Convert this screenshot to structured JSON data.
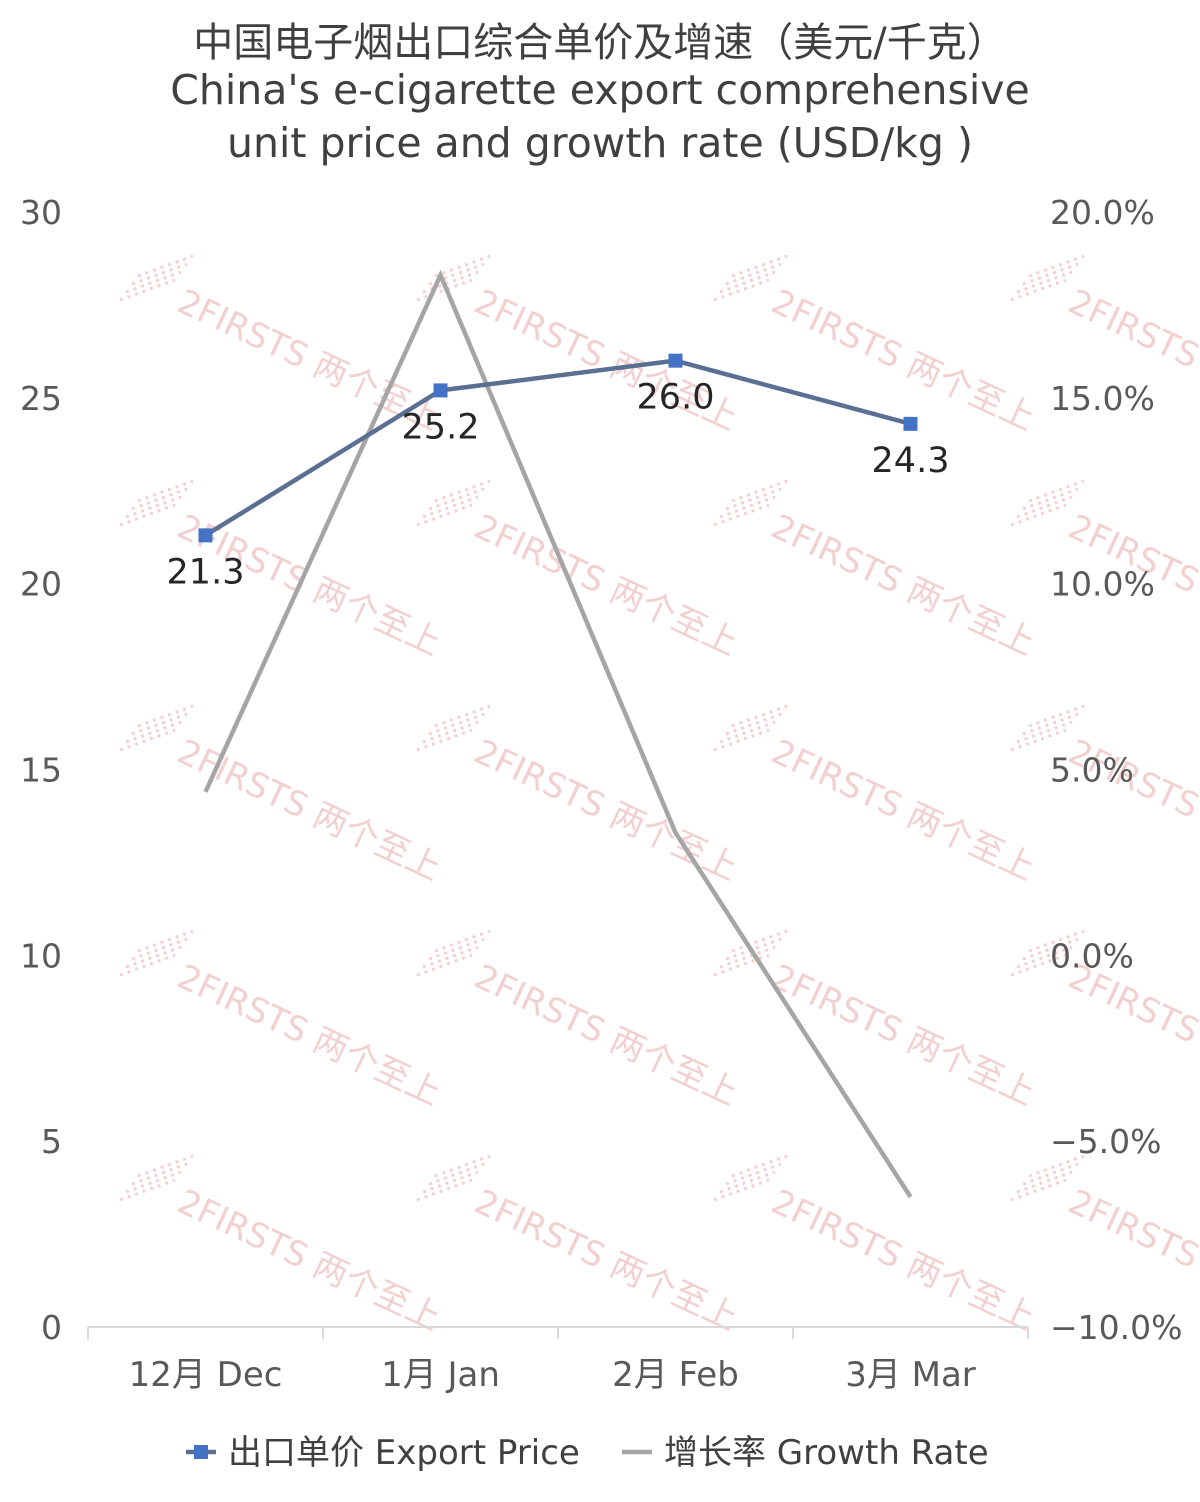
{
  "chart_data": {
    "type": "line",
    "title_cn": "中国电子烟出口综合单价及增速（美元/千克）",
    "title_en_line1": "China's e-cigarette export comprehensive",
    "title_en_line2": "unit price and growth rate (USD/kg )",
    "categories": [
      "12月 Dec",
      "1月 Jan",
      "2月 Feb",
      "3月 Mar"
    ],
    "y_left": {
      "min": 0,
      "max": 30,
      "step": 5,
      "ticks": [
        "0",
        "5",
        "10",
        "15",
        "20",
        "25",
        "30"
      ]
    },
    "y_right": {
      "min": -10,
      "max": 20,
      "step": 5,
      "ticks": [
        "-10.0%",
        "-5.0%",
        "0.0%",
        "5.0%",
        "10.0%",
        "15.0%",
        "20.0%"
      ]
    },
    "series": [
      {
        "name": "出口单价 Export Price",
        "axis": "left",
        "color": "#5a6f91",
        "marker_color": "#4472c4",
        "values": [
          21.3,
          25.2,
          26.0,
          24.3
        ],
        "labels": [
          "21.3",
          "25.2",
          "26.0",
          "24.3"
        ]
      },
      {
        "name": "增长率 Growth Rate",
        "axis": "right",
        "color": "#a5a5a5",
        "values": [
          4.4,
          18.3,
          3.3,
          -6.5
        ]
      }
    ],
    "legend_position": "bottom",
    "watermark": "2FIRSTS 两个至上"
  }
}
